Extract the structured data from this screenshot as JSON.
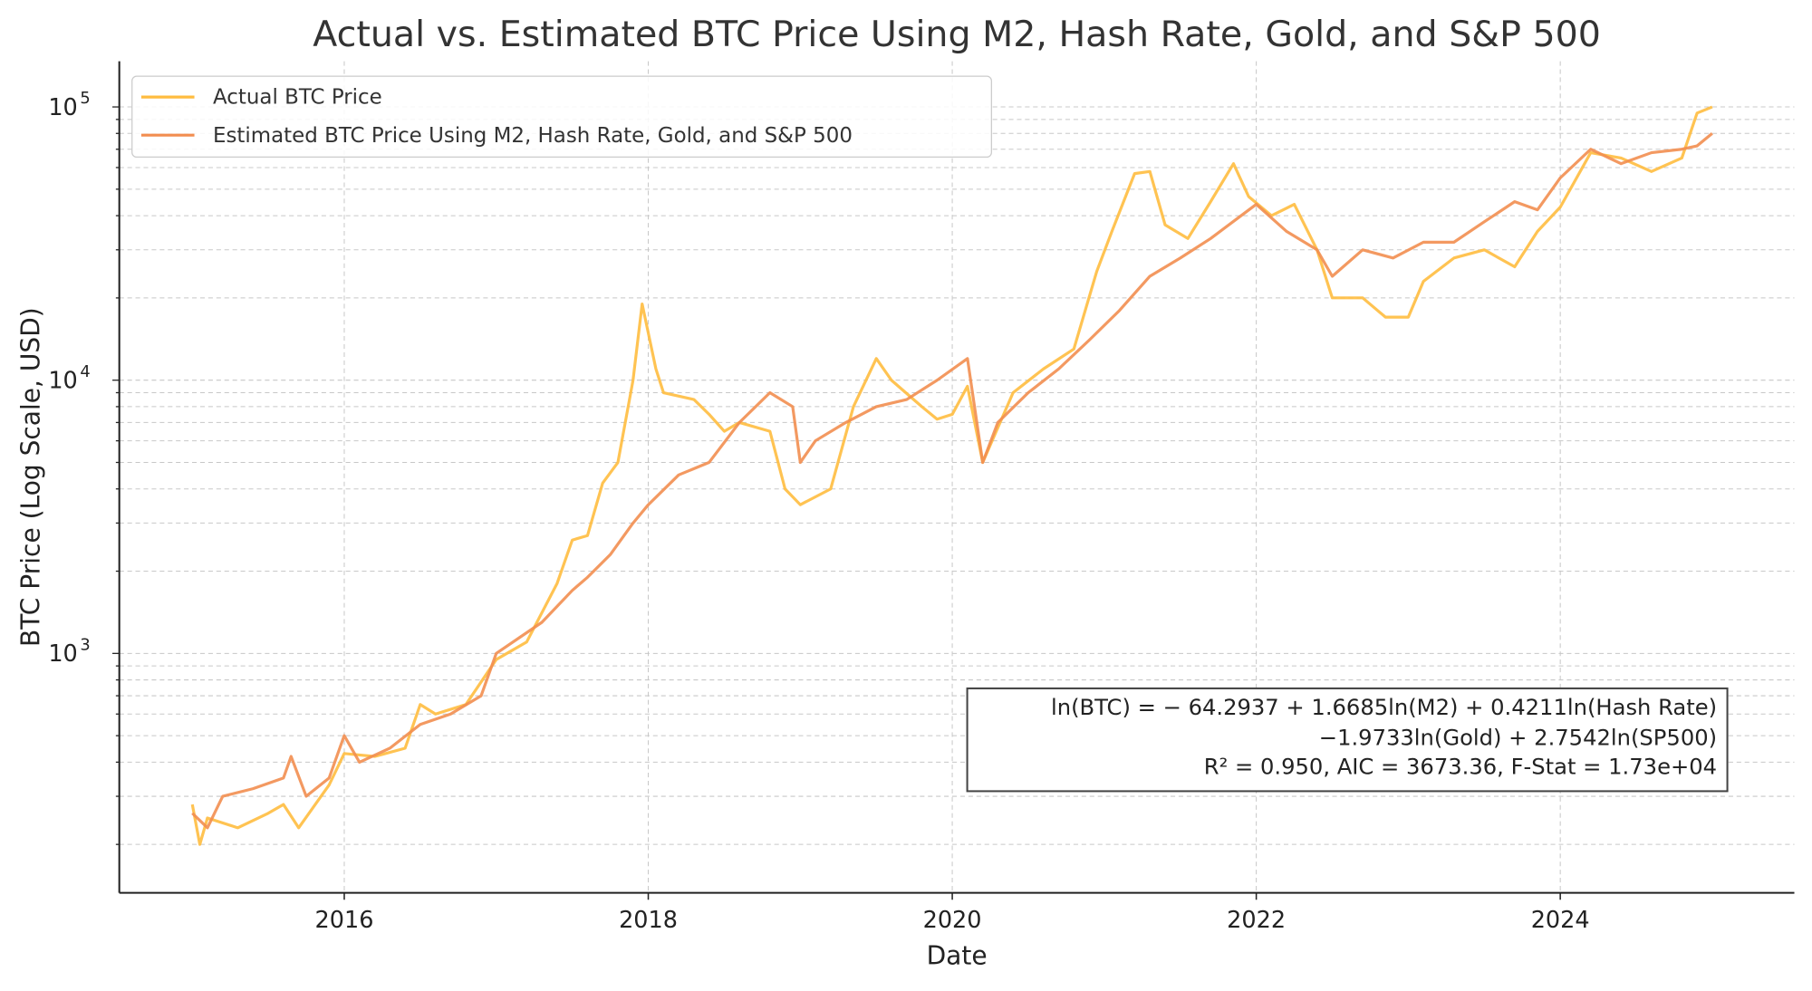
{
  "chart_data": {
    "type": "line",
    "title": "Actual vs. Estimated BTC Price Using M2, Hash Rate, Gold, and S&P 500",
    "xlabel": "Date",
    "ylabel": "BTC Price (Log Scale, USD)",
    "yscale": "log",
    "xlim": [
      2014.52,
      2025.54
    ],
    "ylim": [
      133,
      147000
    ],
    "grid": true,
    "legend_position": "top-left",
    "x_ticks": [
      "2016",
      "2018",
      "2020",
      "2022",
      "2024"
    ],
    "y_ticks": [
      {
        "base": "10",
        "exp": "3",
        "value": 1000
      },
      {
        "base": "10",
        "exp": "4",
        "value": 10000
      },
      {
        "base": "10",
        "exp": "5",
        "value": 100000
      }
    ],
    "series": [
      {
        "name": "Actual BTC Price",
        "color": "#FFBC3F",
        "x": [
          2015.0,
          2015.05,
          2015.1,
          2015.3,
          2015.5,
          2015.6,
          2015.7,
          2015.9,
          2016.0,
          2016.2,
          2016.4,
          2016.5,
          2016.6,
          2016.8,
          2017.0,
          2017.2,
          2017.4,
          2017.5,
          2017.6,
          2017.7,
          2017.8,
          2017.9,
          2017.96,
          2018.05,
          2018.1,
          2018.3,
          2018.4,
          2018.5,
          2018.6,
          2018.8,
          2018.9,
          2019.0,
          2019.2,
          2019.35,
          2019.5,
          2019.6,
          2019.8,
          2019.9,
          2020.0,
          2020.1,
          2020.2,
          2020.4,
          2020.6,
          2020.8,
          2020.95,
          2021.05,
          2021.2,
          2021.3,
          2021.4,
          2021.55,
          2021.7,
          2021.85,
          2021.95,
          2022.1,
          2022.25,
          2022.4,
          2022.5,
          2022.7,
          2022.85,
          2023.0,
          2023.1,
          2023.3,
          2023.5,
          2023.7,
          2023.85,
          2024.0,
          2024.2,
          2024.4,
          2024.6,
          2024.8,
          2024.9,
          2025.0
        ],
        "y": [
          280,
          200,
          250,
          230,
          260,
          280,
          230,
          330,
          430,
          420,
          450,
          650,
          600,
          650,
          950,
          1100,
          1800,
          2600,
          2700,
          4200,
          5000,
          10000,
          19000,
          11000,
          9000,
          8500,
          7500,
          6500,
          7000,
          6500,
          4000,
          3500,
          4000,
          8000,
          12000,
          10000,
          8000,
          7200,
          7500,
          9500,
          5000,
          9000,
          11000,
          13000,
          25000,
          35000,
          57000,
          58000,
          37000,
          33000,
          45000,
          62000,
          47000,
          40000,
          44000,
          30000,
          20000,
          20000,
          17000,
          17000,
          23000,
          28000,
          30000,
          26000,
          35000,
          43000,
          68000,
          65000,
          58000,
          65000,
          95000,
          100000
        ]
      },
      {
        "name": "Estimated BTC Price Using M2, Hash Rate, Gold, and S&P 500",
        "color": "#F28E50",
        "x": [
          2015.0,
          2015.1,
          2015.2,
          2015.4,
          2015.6,
          2015.65,
          2015.75,
          2015.9,
          2016.0,
          2016.1,
          2016.3,
          2016.5,
          2016.7,
          2016.9,
          2017.0,
          2017.3,
          2017.5,
          2017.6,
          2017.75,
          2017.9,
          2018.0,
          2018.2,
          2018.4,
          2018.6,
          2018.8,
          2018.95,
          2019.0,
          2019.1,
          2019.3,
          2019.5,
          2019.7,
          2019.9,
          2020.1,
          2020.2,
          2020.3,
          2020.5,
          2020.7,
          2020.9,
          2021.1,
          2021.3,
          2021.5,
          2021.7,
          2021.9,
          2022.0,
          2022.2,
          2022.4,
          2022.5,
          2022.7,
          2022.9,
          2023.1,
          2023.3,
          2023.5,
          2023.7,
          2023.85,
          2024.0,
          2024.2,
          2024.4,
          2024.6,
          2024.8,
          2024.9,
          2025.0
        ],
        "y": [
          260,
          230,
          300,
          320,
          350,
          420,
          300,
          350,
          500,
          400,
          450,
          550,
          600,
          700,
          1000,
          1300,
          1700,
          1900,
          2300,
          3000,
          3500,
          4500,
          5000,
          7000,
          9000,
          8000,
          5000,
          6000,
          7000,
          8000,
          8500,
          10000,
          12000,
          5000,
          7000,
          9000,
          11000,
          14000,
          18000,
          24000,
          28000,
          33000,
          40000,
          44000,
          35000,
          30000,
          24000,
          30000,
          28000,
          32000,
          32000,
          38000,
          45000,
          42000,
          55000,
          70000,
          62000,
          68000,
          70000,
          72000,
          80000
        ]
      }
    ],
    "annotation": {
      "line1": "ln(BTC) = − 64.2937 + 1.6685ln(M2) + 0.4211ln(Hash Rate)",
      "line2": "−1.9733ln(Gold) + 2.7542ln(SP500)",
      "line3": "R² = 0.950, AIC = 3673.36, F-Stat = 1.73e+04"
    }
  }
}
